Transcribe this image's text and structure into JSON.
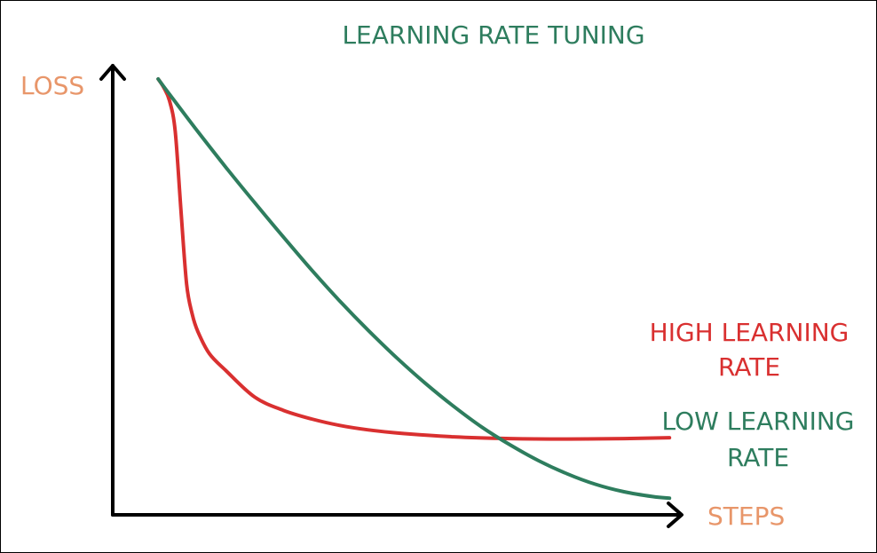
{
  "chart_data": {
    "type": "line",
    "title": "LEARNING RATE TUNING",
    "xlabel": "STEPS",
    "ylabel": "LOSS",
    "xlim": [
      0,
      100
    ],
    "ylim": [
      0,
      100
    ],
    "grid": false,
    "legend": "right, inline labels",
    "series": [
      {
        "name": "HIGH LEARNING RATE",
        "label_lines": [
          "HIGH LEARNING",
          "RATE"
        ],
        "color": "#d93030",
        "x": [
          8,
          9,
          10,
          11,
          12,
          13,
          14,
          15,
          17,
          20,
          25,
          30,
          35,
          40,
          45,
          50,
          60,
          70,
          80,
          90,
          98
        ],
        "y": [
          100,
          98,
          95,
          88,
          70,
          53,
          46,
          42,
          37,
          33,
          27,
          24,
          22,
          20.5,
          19.5,
          18.8,
          17.9,
          17.5,
          17.4,
          17.5,
          17.7
        ]
      },
      {
        "name": "LOW LEARNING RATE",
        "label_lines": [
          "LOW LEARNING",
          "RATE"
        ],
        "color": "#2e7d5e",
        "x": [
          8,
          10,
          15,
          20,
          25,
          30,
          35,
          40,
          45,
          50,
          55,
          60,
          65,
          70,
          75,
          80,
          85,
          90,
          95,
          98
        ],
        "y": [
          100,
          96.5,
          87.9,
          79.6,
          71.6,
          63.8,
          56.2,
          49,
          42.3,
          36,
          30.2,
          24.9,
          20.1,
          16,
          12.4,
          9.4,
          7,
          5.3,
          4.2,
          3.8
        ]
      }
    ]
  },
  "colors": {
    "axis": "#000000",
    "title": "#2e7d5e",
    "axis_label": "#e8966a"
  }
}
